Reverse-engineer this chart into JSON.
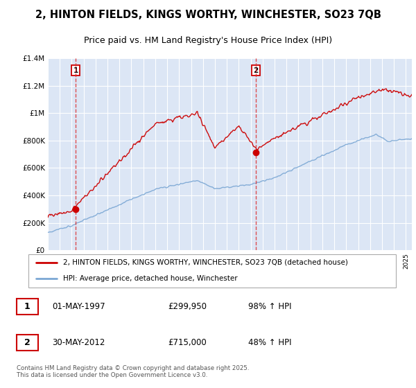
{
  "title_line1": "2, HINTON FIELDS, KINGS WORTHY, WINCHESTER, SO23 7QB",
  "title_line2": "Price paid vs. HM Land Registry's House Price Index (HPI)",
  "title_fontsize": 10.5,
  "subtitle_fontsize": 9,
  "ylim": [
    0,
    1400000
  ],
  "yticks": [
    0,
    200000,
    400000,
    600000,
    800000,
    1000000,
    1200000,
    1400000
  ],
  "ytick_labels": [
    "£0",
    "£200K",
    "£400K",
    "£600K",
    "£800K",
    "£1M",
    "£1.2M",
    "£1.4M"
  ],
  "plot_background": "#dce6f5",
  "grid_color": "#ffffff",
  "transaction1_x": 1997.33,
  "transaction1_y": 299950,
  "transaction2_x": 2012.42,
  "transaction2_y": 715000,
  "red_line_color": "#cc0000",
  "blue_line_color": "#7ba7d4",
  "dashed_line_color": "#dd3333",
  "legend_red_label": "2, HINTON FIELDS, KINGS WORTHY, WINCHESTER, SO23 7QB (detached house)",
  "legend_blue_label": "HPI: Average price, detached house, Winchester",
  "table_row1": [
    "1",
    "01-MAY-1997",
    "£299,950",
    "98% ↑ HPI"
  ],
  "table_row2": [
    "2",
    "30-MAY-2012",
    "£715,000",
    "48% ↑ HPI"
  ],
  "footer_text": "Contains HM Land Registry data © Crown copyright and database right 2025.\nThis data is licensed under the Open Government Licence v3.0.",
  "xmin": 1995,
  "xmax": 2025.5
}
